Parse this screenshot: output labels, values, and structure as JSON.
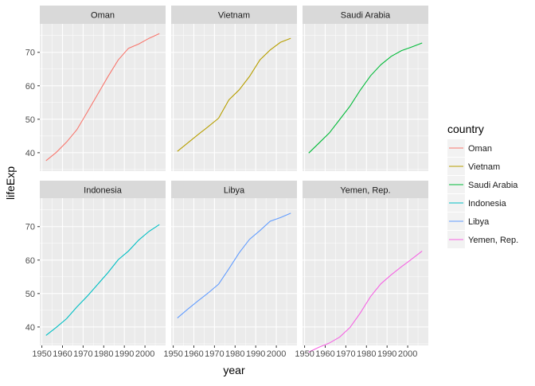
{
  "chart_data": {
    "type": "line",
    "facet_by": "country",
    "layout": "2 rows x 3 columns, shared axes",
    "xlabel": "year",
    "ylabel": "lifeExp",
    "xlim": [
      1949,
      2010
    ],
    "ylim": [
      34.5,
      78.5
    ],
    "x_ticks": [
      1950,
      1960,
      1970,
      1980,
      1990,
      2000
    ],
    "x_tick_labels": [
      "1950",
      "1960",
      "1970",
      "1980",
      "1990",
      "2000"
    ],
    "y_ticks": [
      40,
      50,
      60,
      70
    ],
    "y_tick_labels": [
      "40",
      "50",
      "60",
      "70"
    ],
    "grid": true,
    "legend": {
      "title": "country",
      "position": "right"
    },
    "x": [
      1952,
      1957,
      1962,
      1967,
      1972,
      1977,
      1982,
      1987,
      1992,
      1997,
      2002,
      2007
    ],
    "series": [
      {
        "name": "Oman",
        "color": "#F8766D",
        "values": [
          37.6,
          40.1,
          43.2,
          46.9,
          52.1,
          57.4,
          62.7,
          67.7,
          71.2,
          72.5,
          74.2,
          75.6
        ]
      },
      {
        "name": "Vietnam",
        "color": "#B79F00",
        "values": [
          40.4,
          42.9,
          45.4,
          47.8,
          50.3,
          55.8,
          58.8,
          62.8,
          67.7,
          70.7,
          73.0,
          74.2
        ]
      },
      {
        "name": "Saudi Arabia",
        "color": "#00BA38",
        "values": [
          39.9,
          42.9,
          45.9,
          49.9,
          53.9,
          58.7,
          63.0,
          66.3,
          68.8,
          70.5,
          71.6,
          72.8
        ]
      },
      {
        "name": "Indonesia",
        "color": "#00BFC4",
        "values": [
          37.5,
          39.9,
          42.5,
          46.0,
          49.2,
          52.7,
          56.2,
          60.1,
          62.7,
          66.0,
          68.6,
          70.6
        ]
      },
      {
        "name": "Libya",
        "color": "#619CFF",
        "values": [
          42.7,
          45.3,
          47.8,
          50.2,
          52.8,
          57.4,
          62.2,
          66.2,
          68.8,
          71.6,
          72.7,
          74.0
        ]
      },
      {
        "name": "Yemen, Rep.",
        "color": "#F564E3",
        "values": [
          32.5,
          33.97,
          35.2,
          36.98,
          39.85,
          44.18,
          49.11,
          52.92,
          55.6,
          58.02,
          60.31,
          62.7
        ]
      }
    ]
  }
}
